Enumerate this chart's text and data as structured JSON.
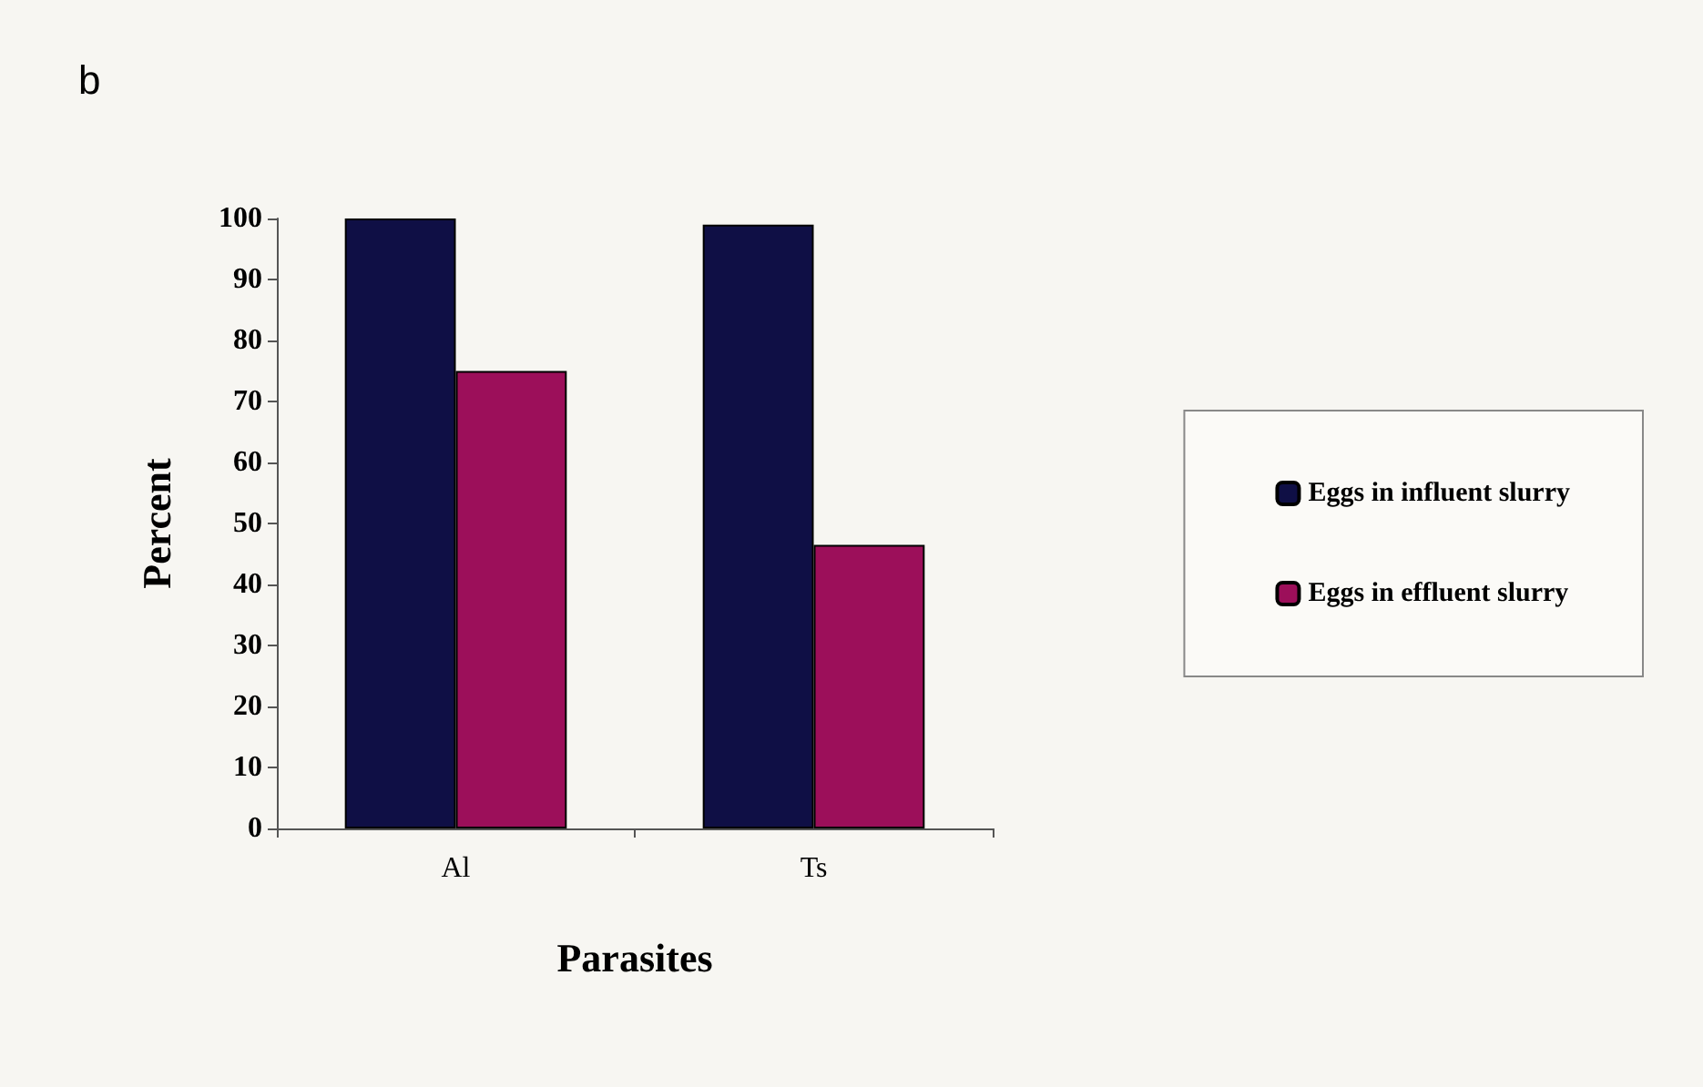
{
  "chart_data": {
    "type": "bar",
    "title": "b",
    "xlabel": "Parasites",
    "ylabel": "Percent",
    "categories": [
      "Al",
      "Ts"
    ],
    "series": [
      {
        "name": "Eggs in influent slurry",
        "color": "#0f0f45",
        "values": [
          100,
          99
        ]
      },
      {
        "name": "Eggs in effluent slurry",
        "color": "#9c0f5a",
        "values": [
          75,
          46.5
        ]
      }
    ],
    "ylim": [
      0,
      100
    ],
    "yticks": [
      0,
      10,
      20,
      30,
      40,
      50,
      60,
      70,
      80,
      90,
      100
    ],
    "grid": false,
    "legend": "right"
  }
}
